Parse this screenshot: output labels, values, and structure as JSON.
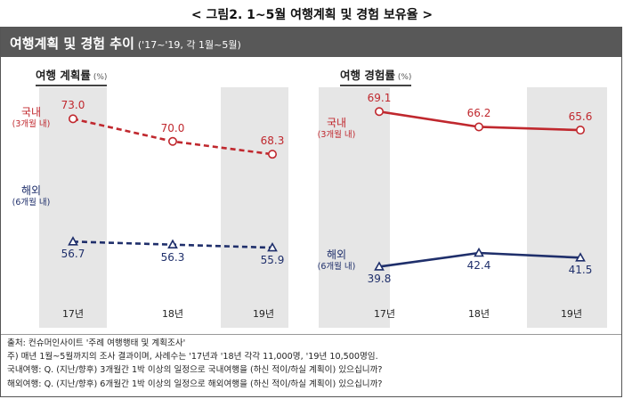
{
  "figure_title": "< 그림2. 1~5월 여행계획 및 경험 보유율 >",
  "header": {
    "title": "여행계획 및 경험 추이",
    "subtitle": "('17~'19, 각 1월~5월)"
  },
  "colors": {
    "domestic": "#c0282e",
    "overseas": "#1f2f6b",
    "band": "#e6e6e6",
    "header_bg": "#585858"
  },
  "chart_data": [
    {
      "type": "line",
      "title": "여행 계획률",
      "unit": "(%)",
      "categories": [
        "17년",
        "18년",
        "19년"
      ],
      "ylim": [
        50,
        76
      ],
      "series": [
        {
          "name": "국내",
          "name_sub": "(3개월 내)",
          "values": [
            73.0,
            70.0,
            68.3
          ],
          "value_labels": [
            "73.0",
            "70.0",
            "68.3"
          ],
          "style": "dashed",
          "marker": "circle",
          "color": "#c0282e"
        },
        {
          "name": "해외",
          "name_sub": "(6개월 내)",
          "values": [
            56.7,
            56.3,
            55.9
          ],
          "value_labels": [
            "56.7",
            "56.3",
            "55.9"
          ],
          "style": "dashed",
          "marker": "triangle",
          "color": "#1f2f6b"
        }
      ]
    },
    {
      "type": "line",
      "title": "여행 경험률",
      "unit": "(%)",
      "categories": [
        "17년",
        "18년",
        "19년"
      ],
      "ylim": [
        35,
        72
      ],
      "series": [
        {
          "name": "국내",
          "name_sub": "(3개월 내)",
          "values": [
            69.1,
            66.2,
            65.6
          ],
          "value_labels": [
            "69.1",
            "66.2",
            "65.6"
          ],
          "style": "solid",
          "marker": "circle",
          "color": "#c0282e"
        },
        {
          "name": "해외",
          "name_sub": "(6개월 내)",
          "values": [
            39.8,
            42.4,
            41.5
          ],
          "value_labels": [
            "39.8",
            "42.4",
            "41.5"
          ],
          "style": "solid",
          "marker": "triangle",
          "color": "#1f2f6b"
        }
      ]
    }
  ],
  "notes": [
    "출처: 컨슈머인사이트 '주례 여행행태 및 계획조사'",
    "주) 매년 1월~5월까지의 조사 결과이며, 사례수는 '17년과 '18년 각각 11,000명, '19년 10,500명임.",
    "국내여행: Q. (지난/향후) 3개월간 1박 이상의 일정으로 국내여행을 (하신 적이/하실 계획이) 있으십니까?",
    "해외여행: Q. (지난/향후) 6개월간 1박 이상의 일정으로 해외여행을 (하신 적이/하실 계획이) 있으십니까?"
  ]
}
